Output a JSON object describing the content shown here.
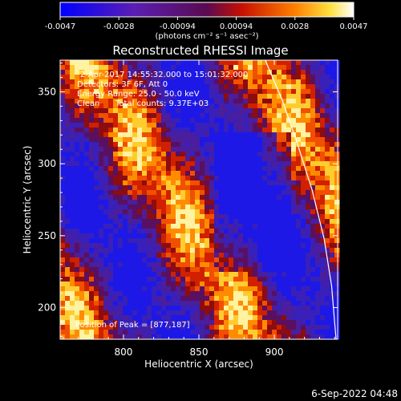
{
  "colorbar": {
    "ticks": [
      "-0.0047",
      "-0.0028",
      "-0.00094",
      "0.00094",
      "0.0028",
      "0.0047"
    ],
    "units_label": "(photons cm⁻² s⁻¹ asec⁻²)",
    "range": [
      -0.0047,
      0.0047
    ],
    "colormap": "blue-purple-red-orange-yellow-white"
  },
  "chart_data": {
    "type": "heatmap",
    "title": "Reconstructed RHESSI Image",
    "xlabel": "Heliocentric X (arcsec)",
    "ylabel": "Heliocentric Y (arcsec)",
    "xlim": [
      758,
      942
    ],
    "ylim": [
      178,
      372
    ],
    "x_ticks": [
      "800",
      "850",
      "900"
    ],
    "y_ticks": [
      "200",
      "250",
      "300",
      "350"
    ],
    "annotations": {
      "time": "2-Apr-2017 14:55:32.000 to 15:01:32.000",
      "detectors": "Detectors: 3F 6F, Att 0",
      "energy": "Energy Range: 25.0 - 50.0 keV",
      "method": "Clean",
      "counts": "Total counts: 9.37E+03",
      "peak": "Position of Peak = [877,187]"
    },
    "peak_position": [
      877,
      187
    ],
    "limb_curve": [
      [
        894,
        372
      ],
      [
        905,
        345
      ],
      [
        915,
        315
      ],
      [
        925,
        282
      ],
      [
        933,
        248
      ],
      [
        938,
        215
      ],
      [
        940,
        190
      ],
      [
        941,
        178
      ]
    ]
  },
  "footer": {
    "date": "6-Sep-2022 04:48"
  }
}
